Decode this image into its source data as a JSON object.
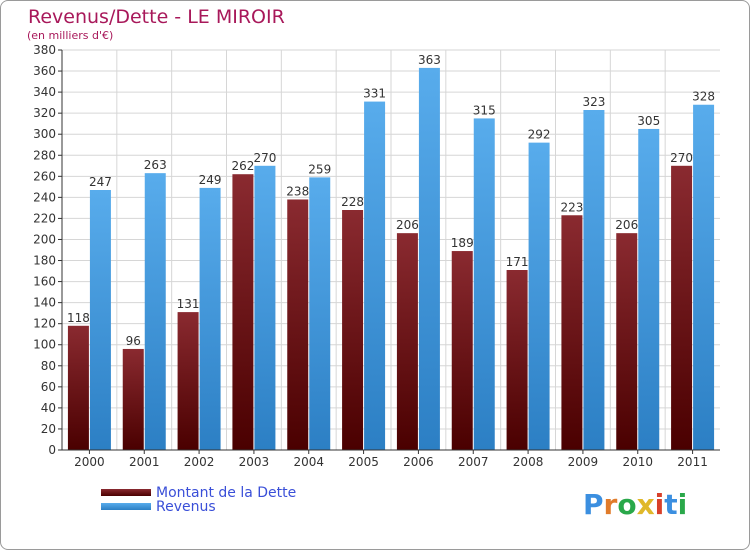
{
  "header": {
    "title": "Revenus/Dette - LE MIROIR",
    "subtitle": "(en milliers d'€)"
  },
  "colors": {
    "title": "#a8185a",
    "dette_top": "#8a2a30",
    "dette_bottom": "#4a0000",
    "revenus_top": "#58acec",
    "revenus_bottom": "#2c7fc4",
    "legend_text": "#3a4fd8",
    "grid": "#d6d6d6"
  },
  "chart_data": {
    "type": "bar",
    "categories": [
      "2000",
      "2001",
      "2002",
      "2003",
      "2004",
      "2005",
      "2006",
      "2007",
      "2008",
      "2009",
      "2010",
      "2011"
    ],
    "series": [
      {
        "name": "Montant de la Dette",
        "values": [
          118,
          96,
          131,
          262,
          238,
          228,
          206,
          189,
          171,
          223,
          206,
          270
        ]
      },
      {
        "name": "Revenus",
        "values": [
          247,
          263,
          249,
          270,
          259,
          331,
          363,
          315,
          292,
          323,
          305,
          328
        ]
      }
    ],
    "title": "Revenus/Dette - LE MIROIR",
    "ylabel": "(en milliers d'€)",
    "ylim": [
      0,
      380
    ],
    "ytick_step": 20,
    "grid": true,
    "legend": "bottom-left"
  },
  "logo": {
    "letters": [
      "P",
      "r",
      "o",
      "x",
      "i",
      "t",
      "i"
    ],
    "colors": [
      "#3b8fe0",
      "#e07b2a",
      "#2aa84a",
      "#e0b82a",
      "#d8402a",
      "#3b8fe0",
      "#2aa84a"
    ]
  }
}
